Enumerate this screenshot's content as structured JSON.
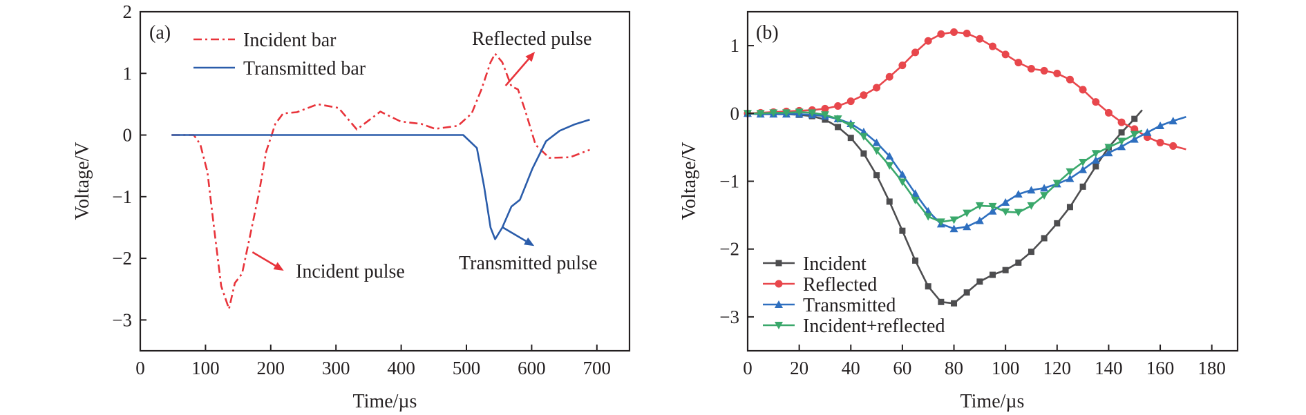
{
  "chart_data": [
    {
      "type": "line",
      "panel_label": "(a)",
      "xlabel": "Time/µs",
      "ylabel": "Voltage/V",
      "xlim": [
        0,
        750
      ],
      "ylim": [
        -3.5,
        2
      ],
      "xticks": [
        0,
        100,
        200,
        300,
        400,
        500,
        600,
        700
      ],
      "yticks": [
        -3,
        -2,
        -1,
        0,
        1,
        2
      ],
      "grid": false,
      "legend_position": "top-left",
      "series": [
        {
          "name": "Incident bar",
          "color": "#e8333a",
          "style": "dash-dot",
          "x": [
            48,
            82,
            92,
            103,
            113,
            124,
            136,
            145,
            156,
            169,
            182,
            193,
            207,
            219,
            240,
            272,
            304,
            332,
            368,
            399,
            431,
            452,
            487,
            508,
            523,
            537,
            544,
            555,
            569,
            579,
            590,
            606,
            627,
            659,
            689
          ],
          "y": [
            0,
            0,
            -0.15,
            -0.6,
            -1.5,
            -2.45,
            -2.82,
            -2.4,
            -2.25,
            -1.6,
            -0.94,
            -0.27,
            0.18,
            0.35,
            0.37,
            0.5,
            0.44,
            0.09,
            0.38,
            0.22,
            0.18,
            0.1,
            0.15,
            0.35,
            0.74,
            1.18,
            1.32,
            1.18,
            0.79,
            0.74,
            0.4,
            -0.16,
            -0.37,
            -0.36,
            -0.24
          ]
        },
        {
          "name": "Transmitted bar",
          "color": "#2a5caa",
          "style": "solid",
          "x": [
            48,
            100,
            200,
            300,
            400,
            495,
            516,
            527,
            537,
            544,
            555,
            569,
            582,
            601,
            622,
            643,
            665,
            689
          ],
          "y": [
            0,
            0,
            0,
            0,
            0,
            0,
            -0.21,
            -0.83,
            -1.5,
            -1.69,
            -1.5,
            -1.16,
            -1.05,
            -0.55,
            -0.1,
            0.07,
            0.17,
            0.25
          ]
        }
      ],
      "annotations": [
        {
          "text": "Reflected pulse",
          "color": "#e8333a",
          "arrow_from": [
            560,
            0.8
          ],
          "arrow_to": [
            605,
            1.35
          ]
        },
        {
          "text": "Incident pulse",
          "color": "#e8333a",
          "arrow_from": [
            172,
            -1.9
          ],
          "arrow_to": [
            220,
            -2.2
          ]
        },
        {
          "text": "Transmitted pulse",
          "color": "#2a5caa",
          "arrow_from": [
            556,
            -1.5
          ],
          "arrow_to": [
            604,
            -1.8
          ]
        }
      ]
    },
    {
      "type": "line",
      "panel_label": "(b)",
      "xlabel": "Time/µs",
      "ylabel": "Voltage/V",
      "xlim": [
        0,
        190
      ],
      "ylim": [
        -3.5,
        1.5
      ],
      "xticks": [
        0,
        20,
        40,
        60,
        80,
        100,
        120,
        140,
        160,
        180
      ],
      "yticks": [
        -3,
        -2,
        -1,
        0,
        1
      ],
      "grid": false,
      "legend_position": "bottom-left",
      "series": [
        {
          "name": "Incident",
          "color": "#4d4d4f",
          "marker": "square",
          "x": [
            0,
            5,
            10,
            15,
            20,
            25,
            30,
            35,
            40,
            45,
            50,
            55,
            60,
            65,
            70,
            75,
            80,
            85,
            90,
            95,
            100,
            105,
            110,
            115,
            120,
            125,
            130,
            135,
            140,
            145,
            150
          ],
          "y": [
            0,
            -0.01,
            -0.01,
            -0.01,
            -0.02,
            -0.04,
            -0.09,
            -0.2,
            -0.36,
            -0.59,
            -0.91,
            -1.3,
            -1.73,
            -2.17,
            -2.55,
            -2.78,
            -2.8,
            -2.64,
            -2.48,
            -2.38,
            -2.31,
            -2.2,
            -2.04,
            -1.84,
            -1.62,
            -1.38,
            -1.08,
            -0.78,
            -0.5,
            -0.28,
            -0.08
          ],
          "line_end": [
            153,
            0.05
          ]
        },
        {
          "name": "Reflected",
          "color": "#e8474c",
          "marker": "circle",
          "x": [
            0,
            5,
            10,
            15,
            20,
            25,
            30,
            35,
            40,
            45,
            50,
            55,
            60,
            65,
            70,
            75,
            80,
            85,
            90,
            95,
            100,
            105,
            110,
            115,
            120,
            125,
            130,
            135,
            140,
            145,
            150,
            155,
            160,
            165
          ],
          "y": [
            0,
            0.01,
            0.02,
            0.03,
            0.04,
            0.05,
            0.07,
            0.11,
            0.18,
            0.27,
            0.38,
            0.54,
            0.71,
            0.9,
            1.07,
            1.17,
            1.2,
            1.18,
            1.1,
            0.99,
            0.87,
            0.75,
            0.66,
            0.63,
            0.59,
            0.5,
            0.35,
            0.17,
            0.01,
            -0.13,
            -0.23,
            -0.35,
            -0.43,
            -0.48
          ],
          "line_end": [
            170,
            -0.53
          ]
        },
        {
          "name": "Transmitted",
          "color": "#2e6fbf",
          "marker": "triangle-up",
          "x": [
            0,
            5,
            10,
            15,
            20,
            25,
            30,
            35,
            40,
            45,
            50,
            55,
            60,
            65,
            70,
            75,
            80,
            85,
            90,
            95,
            100,
            105,
            110,
            115,
            120,
            125,
            130,
            135,
            140,
            145,
            150,
            155,
            160,
            165
          ],
          "y": [
            0,
            -0.01,
            -0.01,
            -0.01,
            -0.01,
            -0.02,
            -0.04,
            -0.08,
            -0.15,
            -0.27,
            -0.43,
            -0.63,
            -0.9,
            -1.18,
            -1.44,
            -1.63,
            -1.7,
            -1.67,
            -1.58,
            -1.44,
            -1.31,
            -1.19,
            -1.13,
            -1.1,
            -1.04,
            -0.96,
            -0.83,
            -0.69,
            -0.58,
            -0.49,
            -0.38,
            -0.28,
            -0.18,
            -0.11
          ],
          "line_end": [
            170,
            -0.05
          ]
        },
        {
          "name": "Incident+reflected",
          "color": "#3aa86b",
          "marker": "triangle-down",
          "x": [
            0,
            5,
            10,
            15,
            20,
            25,
            30,
            35,
            40,
            45,
            50,
            55,
            60,
            65,
            70,
            75,
            80,
            85,
            90,
            95,
            100,
            105,
            110,
            115,
            120,
            125,
            130,
            135,
            140,
            145,
            150
          ],
          "y": [
            0,
            0,
            0.01,
            0.01,
            0.02,
            0.01,
            -0.02,
            -0.08,
            -0.18,
            -0.34,
            -0.55,
            -0.77,
            -1.01,
            -1.28,
            -1.52,
            -1.6,
            -1.57,
            -1.47,
            -1.36,
            -1.37,
            -1.45,
            -1.46,
            -1.36,
            -1.21,
            -1.03,
            -0.86,
            -0.72,
            -0.59,
            -0.5,
            -0.41,
            -0.31
          ],
          "line_end": [
            153,
            -0.25
          ]
        }
      ]
    }
  ]
}
